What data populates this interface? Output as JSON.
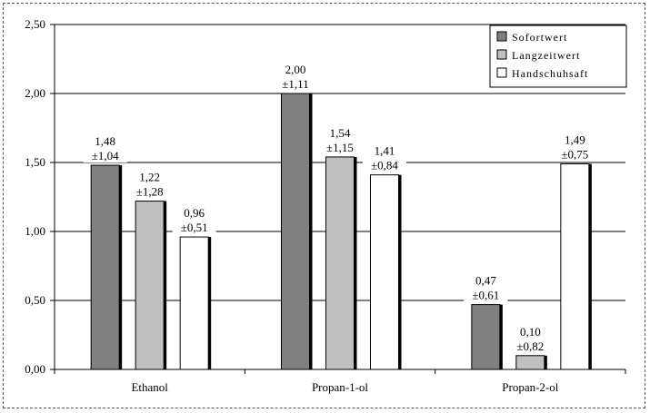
{
  "chart_data": {
    "type": "bar",
    "categories": [
      "Ethanol",
      "Propan-1-ol",
      "Propan-2-ol"
    ],
    "series": [
      {
        "name": "Sofortwert",
        "values": [
          1.48,
          2.0,
          0.47
        ],
        "sd_labels": [
          "±1,04",
          "±1,11",
          "±0,61"
        ],
        "value_labels": [
          "1,48",
          "2,00",
          "0,47"
        ],
        "color": "#808080"
      },
      {
        "name": "Langzeitwert",
        "values": [
          1.22,
          1.54,
          0.1
        ],
        "sd_labels": [
          "±1,28",
          "±1,15",
          "±0,82"
        ],
        "value_labels": [
          "1,22",
          "1,54",
          "0,10"
        ],
        "color": "#c0c0c0"
      },
      {
        "name": "Handschuhsaft",
        "values": [
          0.96,
          1.41,
          1.49
        ],
        "sd_labels": [
          "±0,51",
          "±0,84",
          "±0,75"
        ],
        "value_labels": [
          "0,96",
          "1,41",
          "1,49"
        ],
        "color": "#ffffff"
      }
    ],
    "ylim": [
      0,
      2.5
    ],
    "yticks": [
      0,
      0.5,
      1.0,
      1.5,
      2.0,
      2.5
    ],
    "ytick_labels": [
      "0,00",
      "0,50",
      "1,00",
      "1,50",
      "2,00",
      "2,50"
    ],
    "grid": true,
    "legend_position": "top-right",
    "title": "",
    "xlabel": "",
    "ylabel": ""
  }
}
